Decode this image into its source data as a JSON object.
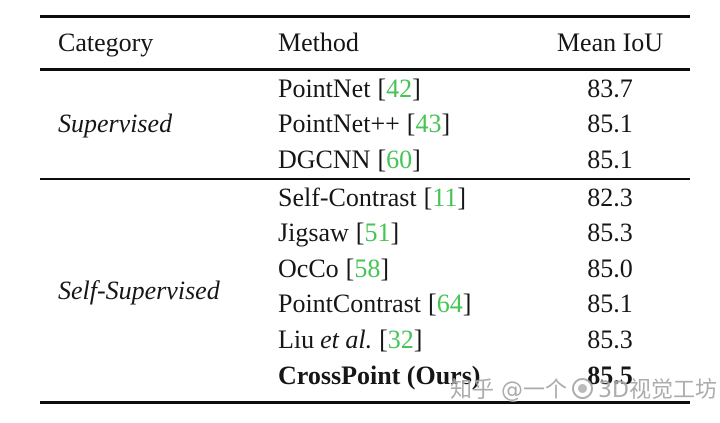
{
  "table": {
    "header": {
      "category": "Category",
      "method": "Method",
      "mean_iou": "Mean IoU"
    },
    "groups": [
      {
        "category": "Supervised",
        "rows": [
          {
            "method": "PointNet",
            "method_italic": "",
            "cite_open": "[",
            "cite": "42",
            "cite_close": "]",
            "value": "83.7"
          },
          {
            "method": "PointNet++",
            "method_italic": "",
            "cite_open": "[",
            "cite": "43",
            "cite_close": "]",
            "value": "85.1"
          },
          {
            "method": "DGCNN",
            "method_italic": "",
            "cite_open": "[",
            "cite": "60",
            "cite_close": "]",
            "value": "85.1"
          }
        ]
      },
      {
        "category": "Self-Supervised",
        "rows": [
          {
            "method": "Self-Contrast",
            "method_italic": "",
            "cite_open": "[",
            "cite": "11",
            "cite_close": "]",
            "value": "82.3"
          },
          {
            "method": "Jigsaw",
            "method_italic": "",
            "cite_open": "[",
            "cite": "51",
            "cite_close": "]",
            "value": "85.3"
          },
          {
            "method": "OcCo",
            "method_italic": "",
            "cite_open": "[",
            "cite": "58",
            "cite_close": "]",
            "value": "85.0"
          },
          {
            "method": "PointContrast",
            "method_italic": "",
            "cite_open": "[",
            "cite": "64",
            "cite_close": "]",
            "value": "85.1"
          },
          {
            "method": "Liu",
            "method_italic": "et al.",
            "cite_open": "[",
            "cite": "32",
            "cite_close": "]",
            "value": "85.3"
          },
          {
            "method": "CrossPoint (Ours)",
            "method_italic": "",
            "cite_open": "",
            "cite": "",
            "cite_close": "",
            "value": "85.5"
          }
        ]
      }
    ]
  },
  "colors": {
    "citation_green": "#46c556",
    "rule_black": "#0d0d0d",
    "text": "#161616",
    "watermark_gray": "#9e9e9e"
  },
  "watermark": {
    "text_left": "知乎 @一个",
    "text_right": "3D视觉工坊"
  }
}
